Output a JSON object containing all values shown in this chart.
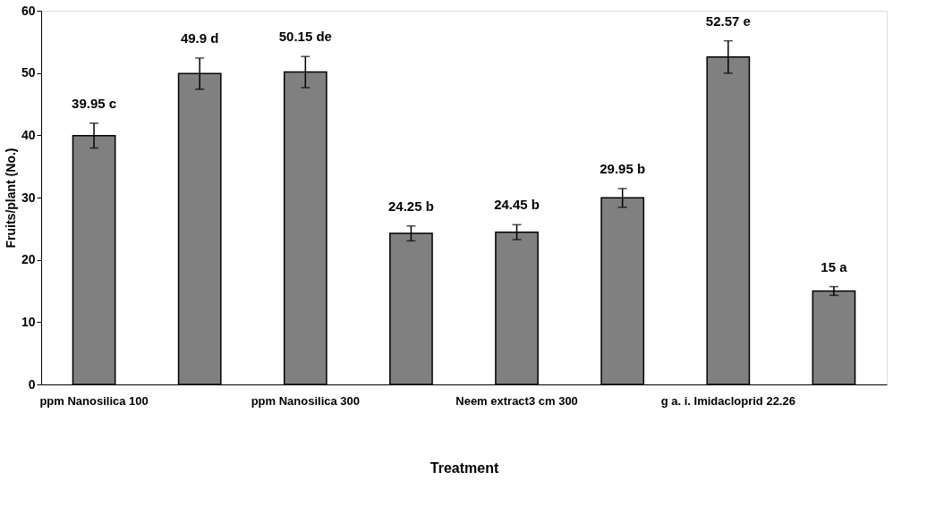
{
  "chart_data": {
    "type": "bar",
    "xlabel": "Treatment",
    "ylabel": "Fruits/plant (No.)",
    "categories": [
      "ppm Nanosilica 100",
      null,
      "ppm Nanosilica 300",
      null,
      "Neem extract3 cm 300",
      null,
      "g a. i. Imidacloprid 22.26",
      null
    ],
    "values": [
      39.95,
      49.9,
      50.15,
      24.25,
      24.45,
      29.95,
      52.57,
      15
    ],
    "errors": [
      2.0,
      2.5,
      2.5,
      1.2,
      1.2,
      1.5,
      2.6,
      0.7
    ],
    "value_labels": [
      "39.95 c",
      "49.9 d",
      "50.15 de",
      "24.25 b",
      "24.45 b",
      "29.95 b",
      "52.57 e",
      "15 a"
    ],
    "color": "#808080",
    "ylim": [
      0,
      60
    ],
    "yticks": [
      0,
      10,
      20,
      30,
      40,
      50,
      60
    ],
    "grid": false
  }
}
